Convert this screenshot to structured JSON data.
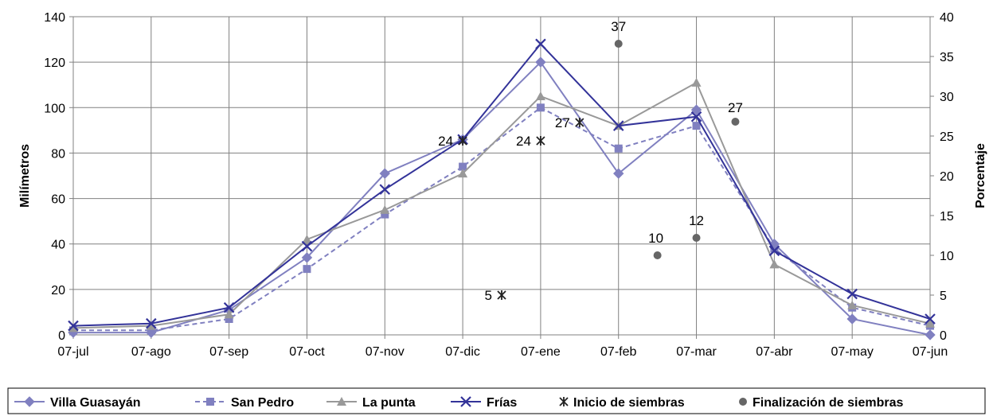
{
  "chart_data": {
    "type": "line",
    "categories": [
      "07-jul",
      "07-ago",
      "07-sep",
      "07-oct",
      "07-nov",
      "07-dic",
      "07-ene",
      "07-feb",
      "07-mar",
      "07-abr",
      "07-may",
      "07-jun"
    ],
    "ylabel": "Milímetros",
    "y2label": "Porcentaje",
    "ylim": [
      0,
      140
    ],
    "y2lim": [
      0,
      40
    ],
    "yticks": [
      "0",
      "20",
      "40",
      "60",
      "80",
      "100",
      "120",
      "140"
    ],
    "y2ticks": [
      "0",
      "5",
      "10",
      "15",
      "20",
      "25",
      "30",
      "35",
      "40"
    ],
    "grid": true,
    "legend_position": "bottom",
    "series": [
      {
        "name": "Villa Guasayán",
        "color": "#8080C0",
        "dash": false,
        "marker": "diamond",
        "values": [
          1,
          1,
          11,
          34,
          71,
          86,
          120,
          71,
          99,
          40,
          7,
          0
        ]
      },
      {
        "name": "San Pedro",
        "color": "#8080C0",
        "dash": true,
        "marker": "square",
        "values": [
          2,
          2,
          7,
          29,
          53,
          74,
          100,
          82,
          92,
          38,
          12,
          4
        ]
      },
      {
        "name": "La punta",
        "color": "#999999",
        "dash": false,
        "marker": "triangle",
        "values": [
          3,
          4,
          9,
          42,
          55,
          71,
          105,
          92,
          111,
          31,
          13,
          5
        ]
      },
      {
        "name": "Frías",
        "color": "#333399",
        "dash": false,
        "marker": "x",
        "values": [
          4,
          5,
          12,
          39,
          64,
          86,
          128,
          92,
          96,
          37,
          18,
          7
        ]
      }
    ],
    "scatter_series": [
      {
        "name": "Inicio de siembras",
        "axis": "right",
        "marker": "star",
        "color": "#222222",
        "points": [
          {
            "x": 5.5,
            "y": 5,
            "label": "5"
          },
          {
            "x": 5.0,
            "y": 24.4,
            "label": "24"
          },
          {
            "x": 6.0,
            "y": 24.4,
            "label": "24"
          },
          {
            "x": 6.5,
            "y": 26.7,
            "label": "27"
          }
        ]
      },
      {
        "name": "Finalización de siembras",
        "axis": "right",
        "marker": "circle",
        "color": "#666666",
        "points": [
          {
            "x": 7.5,
            "y": 10,
            "label": "10"
          },
          {
            "x": 8.0,
            "y": 12.2,
            "label": "12"
          },
          {
            "x": 8.5,
            "y": 26.8,
            "label": "27"
          },
          {
            "x": 7.0,
            "y": 36.6,
            "label": "37"
          }
        ]
      }
    ]
  }
}
